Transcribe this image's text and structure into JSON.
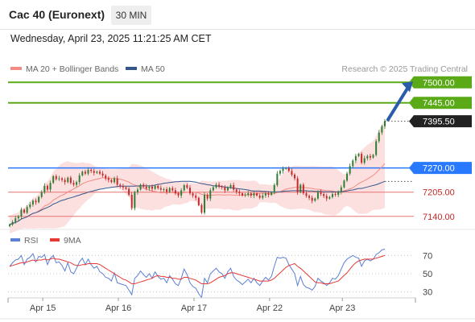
{
  "header": {
    "title": "Cac 40 (Euronext)",
    "timeframe_button": "30 MIN",
    "datetime": "Wednesday, April 23, 2025 11:21:25 AM CET"
  },
  "legend": {
    "ma20": {
      "label": "MA 20 + Bollinger Bands",
      "color": "#f28b82"
    },
    "ma50": {
      "label": "MA 50",
      "color": "#34568b"
    },
    "rsi": {
      "label": "RSI",
      "color": "#5b7fd6"
    },
    "rsi_ma": {
      "label": "9MA",
      "color": "#e53935"
    }
  },
  "copyright": "Research © 2025 Trading Central",
  "colors": {
    "up_candle": "#2e7d32",
    "down_candle": "#c62828",
    "bollinger_fill": "#fbd5d5",
    "target_line": "#5aaa18",
    "pivot_line": "#2979ff",
    "support_line": "#e57373",
    "arrow": "#2a5caa",
    "last_price_bg": "#222222"
  },
  "chart_data": [
    {
      "type": "candlestick",
      "title": "",
      "ylim": [
        7105,
        7520
      ],
      "x_ticks": [
        "Apr 15",
        "Apr 16",
        "Apr 17",
        "Apr 22",
        "Apr 23"
      ],
      "levels": [
        {
          "value": 7500.0,
          "label": "7500.00",
          "kind": "target"
        },
        {
          "value": 7445.0,
          "label": "7445.00",
          "kind": "target"
        },
        {
          "value": 7395.5,
          "label": "7395.50",
          "kind": "last"
        },
        {
          "value": 7270.0,
          "label": "7270.00",
          "kind": "pivot"
        },
        {
          "value": 7205.0,
          "label": "7205.00",
          "kind": "support"
        },
        {
          "value": 7140.0,
          "label": "7140.00",
          "kind": "support"
        }
      ],
      "close": [
        7118,
        7125,
        7135,
        7140,
        7158,
        7150,
        7165,
        7172,
        7182,
        7178,
        7192,
        7205,
        7222,
        7212,
        7230,
        7248,
        7240,
        7242,
        7238,
        7232,
        7244,
        7230,
        7225,
        7232,
        7250,
        7260,
        7255,
        7265,
        7262,
        7257,
        7260,
        7255,
        7250,
        7242,
        7238,
        7232,
        7242,
        7225,
        7222,
        7218,
        7214,
        7198,
        7162,
        7205,
        7212,
        7225,
        7220,
        7215,
        7220,
        7214,
        7222,
        7216,
        7212,
        7213,
        7206,
        7216,
        7210,
        7202,
        7196,
        7210,
        7224,
        7217,
        7202,
        7196,
        7190,
        7170,
        7150,
        7198,
        7188,
        7210,
        7218,
        7225,
        7220,
        7218,
        7210,
        7218,
        7224,
        7212,
        7206,
        7202,
        7196,
        7198,
        7202,
        7196,
        7202,
        7196,
        7190,
        7196,
        7202,
        7198,
        7204,
        7224,
        7255,
        7262,
        7268,
        7270,
        7262,
        7252,
        7242,
        7205,
        7225,
        7202,
        7195,
        7190,
        7182,
        7188,
        7205,
        7200,
        7195,
        7188,
        7192,
        7200,
        7198,
        7206,
        7218,
        7236,
        7255,
        7275,
        7290,
        7302,
        7308,
        7284,
        7296,
        7302,
        7298,
        7305,
        7342,
        7365,
        7382,
        7395.5
      ],
      "ma20": [
        7118,
        7121,
        7124,
        7127,
        7133,
        7136,
        7139,
        7144,
        7148,
        7150,
        7155,
        7160,
        7168,
        7171,
        7176,
        7184,
        7188,
        7193,
        7197,
        7200,
        7206,
        7209,
        7214,
        7218,
        7222,
        7228,
        7231,
        7234,
        7236,
        7238,
        7240,
        7242,
        7244,
        7243,
        7243,
        7242,
        7242,
        7241,
        7240,
        7238,
        7235,
        7232,
        7227,
        7224,
        7221,
        7218,
        7216,
        7213,
        7211,
        7208,
        7207,
        7205,
        7203,
        7204,
        7204,
        7204,
        7204,
        7203,
        7202,
        7202,
        7204,
        7205,
        7205,
        7205,
        7204,
        7203,
        7199,
        7198,
        7197,
        7197,
        7197,
        7198,
        7198,
        7198,
        7197,
        7198,
        7198,
        7197,
        7197,
        7197,
        7198,
        7198,
        7198,
        7198,
        7200,
        7200,
        7202,
        7202,
        7202,
        7201,
        7200,
        7201,
        7204,
        7206,
        7210,
        7213,
        7215,
        7216,
        7218,
        7218,
        7218,
        7218,
        7217,
        7216,
        7215,
        7213,
        7213,
        7212,
        7210,
        7209,
        7209,
        7208,
        7206,
        7206,
        7206,
        7209,
        7211,
        7214,
        7217,
        7222,
        7228,
        7232,
        7236,
        7240,
        7245,
        7250,
        7257,
        7265,
        7273,
        7282
      ],
      "ma50": [
        7118,
        7121,
        7124,
        7127,
        7133,
        7136,
        7139,
        7144,
        7148,
        7150,
        7153,
        7157,
        7161,
        7164,
        7168,
        7173,
        7176,
        7180,
        7183,
        7185,
        7188,
        7190,
        7192,
        7195,
        7197,
        7200,
        7202,
        7205,
        7207,
        7209,
        7211,
        7213,
        7214,
        7216,
        7217,
        7218,
        7219,
        7220,
        7221,
        7221,
        7221,
        7221,
        7221,
        7221,
        7222,
        7222,
        7222,
        7222,
        7222,
        7222,
        7224,
        7226,
        7227,
        7229,
        7230,
        7231,
        7232,
        7233,
        7233,
        7234,
        7234,
        7234,
        7234,
        7233,
        7232,
        7230,
        7228,
        7227,
        7225,
        7224,
        7222,
        7222,
        7221,
        7220,
        7219,
        7218,
        7217,
        7216,
        7215,
        7214,
        7213,
        7212,
        7211,
        7209,
        7208,
        7208,
        7208,
        7207,
        7207,
        7206,
        7206,
        7205,
        7206,
        7206,
        7207,
        7208,
        7208,
        7209,
        7209,
        7209,
        7209,
        7209,
        7209,
        7208,
        7208,
        7207,
        7207,
        7207,
        7206,
        7206,
        7206,
        7206,
        7206,
        7206,
        7206,
        7207,
        7208,
        7210,
        7211,
        7213,
        7215,
        7215,
        7217,
        7219,
        7221,
        7223,
        7225,
        7228,
        7231,
        7234
      ]
    },
    {
      "type": "line",
      "title": "",
      "ylim": [
        20,
        80
      ],
      "y_ticks": [
        30,
        50,
        70
      ],
      "series": [
        {
          "name": "RSI",
          "values": [
            58,
            62,
            65,
            66,
            70,
            60,
            66,
            68,
            72,
            63,
            69,
            68,
            71,
            60,
            67,
            70,
            62,
            63,
            59,
            53,
            62,
            52,
            50,
            56,
            63,
            67,
            60,
            66,
            60,
            56,
            58,
            52,
            50,
            46,
            45,
            42,
            51,
            40,
            39,
            38,
            37,
            32,
            27,
            45,
            48,
            53,
            49,
            46,
            50,
            45,
            52,
            47,
            44,
            45,
            40,
            48,
            44,
            39,
            37,
            45,
            55,
            49,
            40,
            36,
            34,
            28,
            24,
            45,
            40,
            50,
            53,
            56,
            52,
            50,
            45,
            52,
            56,
            47,
            43,
            41,
            38,
            41,
            44,
            40,
            45,
            40,
            37,
            42,
            46,
            43,
            47,
            58,
            68,
            67,
            68,
            67,
            60,
            55,
            50,
            37,
            47,
            38,
            35,
            34,
            32,
            36,
            45,
            42,
            40,
            37,
            40,
            45,
            44,
            48,
            55,
            62,
            66,
            68,
            70,
            68,
            67,
            58,
            64,
            66,
            64,
            66,
            71,
            73,
            76,
            77
          ]
        },
        {
          "name": "9MA",
          "values": [
            58,
            59,
            60,
            61,
            62,
            62,
            63,
            64,
            65,
            64,
            65,
            65,
            66,
            65,
            66,
            67,
            66,
            66,
            65,
            64,
            63,
            62,
            60,
            59,
            59,
            60,
            60,
            61,
            61,
            61,
            61,
            60,
            58,
            56,
            54,
            52,
            50,
            48,
            46,
            44,
            43,
            41,
            39,
            39,
            40,
            41,
            42,
            43,
            44,
            45,
            47,
            48,
            47,
            47,
            46,
            46,
            45,
            45,
            44,
            44,
            46,
            46,
            45,
            44,
            43,
            41,
            39,
            39,
            39,
            40,
            42,
            44,
            46,
            47,
            48,
            50,
            51,
            51,
            50,
            49,
            48,
            47,
            46,
            45,
            44,
            43,
            42,
            42,
            42,
            42,
            43,
            45,
            48,
            51,
            54,
            57,
            59,
            60,
            61,
            58,
            56,
            53,
            50,
            47,
            44,
            41,
            40,
            40,
            39,
            39,
            39,
            40,
            41,
            42,
            45,
            48,
            51,
            55,
            59,
            62,
            64,
            65,
            66,
            66,
            66,
            66,
            67,
            68,
            69,
            70
          ]
        }
      ]
    }
  ]
}
